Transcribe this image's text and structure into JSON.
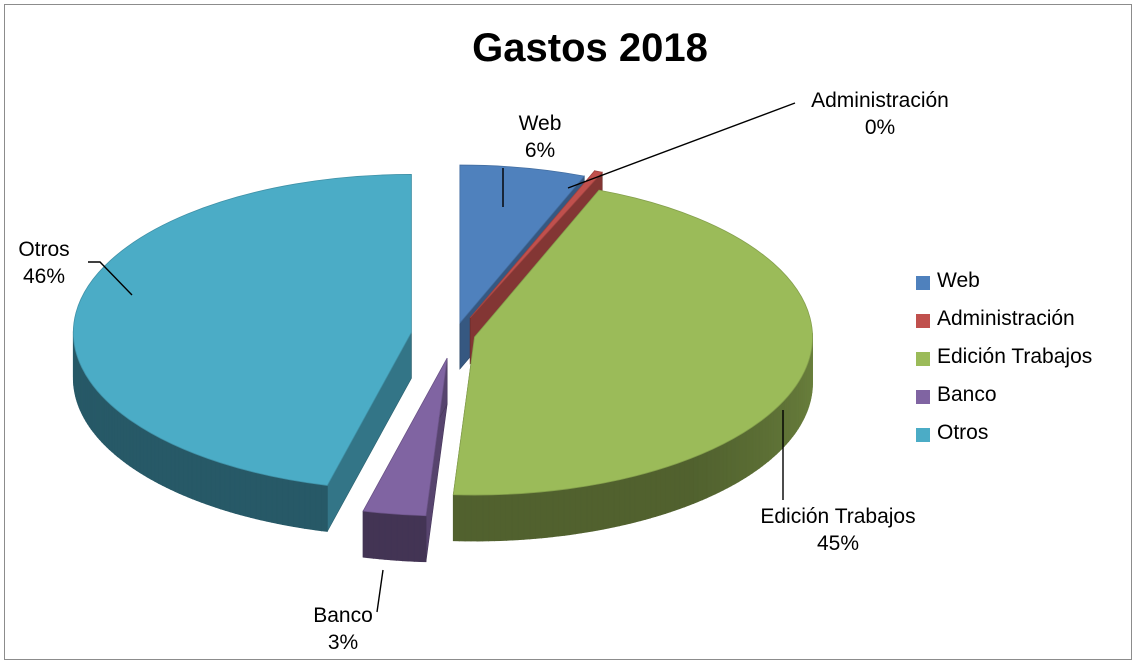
{
  "chart_data": {
    "type": "pie",
    "title": "Gastos 2018",
    "style": "3d-exploded",
    "legend_position": "right",
    "slices": [
      {
        "name": "Web",
        "value": 6,
        "label": "6%",
        "color": "#4f81bd"
      },
      {
        "name": "Administración",
        "value": 0,
        "label": "0%",
        "color": "#c0504d"
      },
      {
        "name": "Edición Trabajos",
        "value": 45,
        "label": "45%",
        "color": "#9bbb59"
      },
      {
        "name": "Banco",
        "value": 3,
        "label": "3%",
        "color": "#8064a2"
      },
      {
        "name": "Otros",
        "value": 46,
        "label": "46%",
        "color": "#4bacc6"
      }
    ]
  }
}
